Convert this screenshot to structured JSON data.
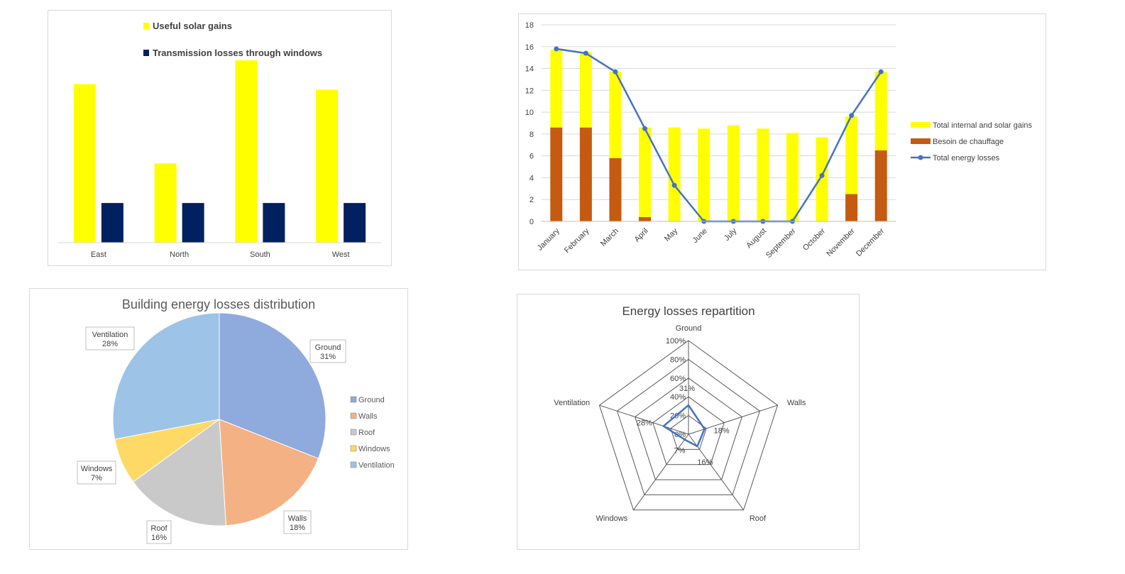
{
  "chart_data": [
    {
      "type": "bar",
      "title": "",
      "categories": [
        "East",
        "North",
        "South",
        "West"
      ],
      "ylim": [
        0,
        115
      ],
      "grid": false,
      "legend_position": "top-left",
      "series": [
        {
          "name": "Useful solar gains",
          "values": [
            100,
            50,
            115,
            96.5
          ],
          "color": "#ffff00"
        },
        {
          "name": "Transmission losses through windows",
          "values": [
            25,
            25,
            25,
            25
          ],
          "color": "#002060"
        }
      ]
    },
    {
      "type": "bar",
      "stacked": true,
      "title": "",
      "categories": [
        "January",
        "February",
        "March",
        "April",
        "May",
        "June",
        "July",
        "August",
        "September",
        "October",
        "November",
        "December"
      ],
      "ylim": [
        0,
        18
      ],
      "yticks": [
        "0",
        "2",
        "4",
        "6",
        "8",
        "10",
        "12",
        "14",
        "16",
        "18"
      ],
      "grid": true,
      "legend_position": "right",
      "series": [
        {
          "name": "Besoin de chauffage",
          "type": "bar",
          "values": [
            8.6,
            8.6,
            5.8,
            0.4,
            0,
            0,
            0,
            0,
            0,
            0,
            2.5,
            6.5
          ],
          "color": "#c55a11"
        },
        {
          "name": "Total internal and solar gains",
          "type": "bar",
          "values": [
            7.1,
            6.9,
            7.9,
            8.2,
            8.6,
            8.5,
            8.8,
            8.5,
            8.1,
            7.7,
            7.1,
            7.2
          ],
          "color": "#ffff00"
        },
        {
          "name": "Total energy losses",
          "type": "line",
          "values": [
            15.8,
            15.4,
            13.7,
            8.5,
            3.3,
            0,
            0,
            0,
            0,
            4.2,
            9.7,
            13.7
          ],
          "color": "#4472c4"
        }
      ]
    },
    {
      "type": "pie",
      "title": "Building energy losses distribution",
      "legend_position": "right",
      "slices": [
        {
          "label": "Ground",
          "percent": "31%",
          "value": 31,
          "color": "#8faadc"
        },
        {
          "label": "Walls",
          "percent": "18%",
          "value": 18,
          "color": "#f4b183"
        },
        {
          "label": "Roof",
          "percent": "16%",
          "value": 16,
          "color": "#c9c9c9"
        },
        {
          "label": "Windows",
          "percent": "7%",
          "value": 7,
          "color": "#ffd966"
        },
        {
          "label": "Ventilation",
          "percent": "28%",
          "value": 28,
          "color": "#9dc3e6"
        }
      ]
    },
    {
      "type": "radar",
      "title": "Energy losses repartition",
      "axes": [
        "Ground",
        "Walls",
        "Roof",
        "Windows",
        "Ventilation"
      ],
      "rlim": [
        0,
        100
      ],
      "ticks": [
        "0%",
        "20%",
        "40%",
        "60%",
        "80%",
        "100%"
      ],
      "series": [
        {
          "values": [
            31,
            18,
            16,
            7,
            28
          ],
          "labels": [
            "31%",
            "18%",
            "16%",
            "7%",
            "28%"
          ],
          "color": "#4472c4"
        }
      ]
    }
  ]
}
